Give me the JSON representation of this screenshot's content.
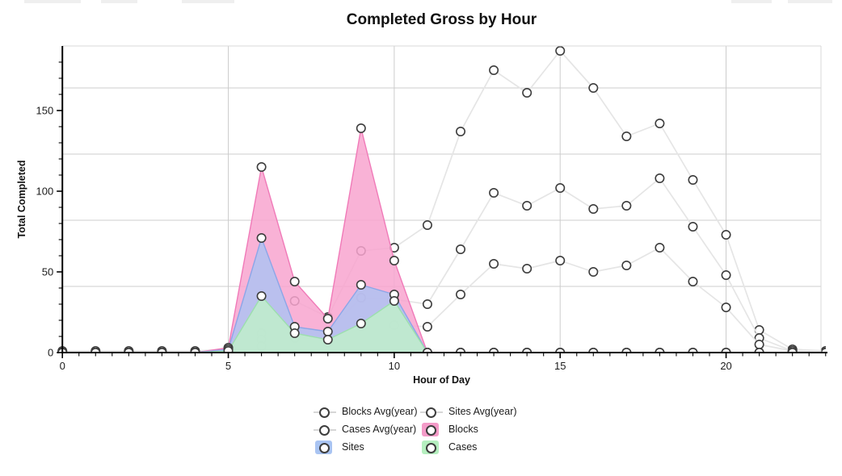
{
  "chart_data": {
    "type": "area",
    "title": "Completed Gross by Hour",
    "xlabel": "Hour of Day",
    "ylabel": "Total Completed",
    "x": [
      0,
      1,
      2,
      3,
      4,
      5,
      6,
      7,
      8,
      9,
      10,
      11,
      12,
      13,
      14,
      15,
      16,
      17,
      18,
      19,
      20,
      21,
      22,
      23
    ],
    "xlim": [
      0,
      23
    ],
    "ylim": [
      0,
      190
    ],
    "x_ticks": [
      0,
      5,
      10,
      15,
      20
    ],
    "y_ticks": [
      0,
      50,
      100,
      150
    ],
    "grid": {
      "h_values": [
        41,
        82,
        123,
        164
      ],
      "v_hours": [
        5,
        10,
        15,
        20
      ]
    },
    "marker": {
      "fill": "#ffffff",
      "ring": "#3d3d3d"
    },
    "series": [
      {
        "name": "Blocks Avg(year)",
        "type": "line",
        "color": "#e5e5e5",
        "values": [
          1,
          1,
          1,
          1,
          1,
          2,
          12,
          32,
          22,
          63,
          65,
          79,
          137,
          175,
          161,
          187,
          164,
          134,
          142,
          107,
          73,
          14,
          2,
          1
        ]
      },
      {
        "name": "Sites Avg(year)",
        "type": "line",
        "color": "#e5e5e5",
        "values": [
          0,
          0,
          0,
          0,
          0,
          1,
          8,
          16,
          13,
          34,
          33,
          30,
          64,
          99,
          91,
          102,
          89,
          91,
          108,
          78,
          48,
          9,
          1,
          0
        ]
      },
      {
        "name": "Cases Avg(year)",
        "type": "line",
        "color": "#e5e5e5",
        "values": [
          0,
          0,
          0,
          0,
          0,
          1,
          4,
          9,
          6,
          18,
          17,
          16,
          36,
          55,
          52,
          57,
          50,
          54,
          65,
          44,
          28,
          5,
          1,
          0
        ]
      },
      {
        "name": "Blocks",
        "type": "area",
        "fill": "#f8a5cf",
        "edge": "#f07ab8",
        "values": [
          0,
          0,
          0,
          0,
          0,
          3,
          115,
          44,
          21,
          139,
          57,
          0,
          0,
          0,
          0,
          0,
          0,
          0,
          0,
          0,
          0,
          0,
          0,
          0
        ]
      },
      {
        "name": "Sites",
        "type": "area",
        "fill": "#afc2f2",
        "edge": "#8ca6e8",
        "values": [
          0,
          0,
          0,
          0,
          0,
          2,
          71,
          16,
          13,
          42,
          36,
          0,
          0,
          0,
          0,
          0,
          0,
          0,
          0,
          0,
          0,
          0,
          0,
          0
        ]
      },
      {
        "name": "Cases",
        "type": "area",
        "fill": "#bfeeca",
        "edge": "#9cdfad",
        "values": [
          0,
          0,
          0,
          0,
          0,
          1,
          35,
          12,
          8,
          18,
          32,
          0,
          0,
          0,
          0,
          0,
          0,
          0,
          0,
          0,
          0,
          0,
          0,
          0
        ]
      }
    ],
    "legend": {
      "position": "bottom",
      "entries": [
        {
          "label": "Blocks Avg(year)",
          "kind": "line",
          "swatch": "#d6d6d6"
        },
        {
          "label": "Sites Avg(year)",
          "kind": "line",
          "swatch": "#d6d6d6"
        },
        {
          "label": "Cases Avg(year)",
          "kind": "line",
          "swatch": "#d6d6d6"
        },
        {
          "label": "Blocks",
          "kind": "area",
          "swatch": "#f49bc8"
        },
        {
          "label": "Sites",
          "kind": "area",
          "swatch": "#a9c4f2"
        },
        {
          "label": "Cases",
          "kind": "area",
          "swatch": "#b5efbf"
        }
      ]
    },
    "colors": {
      "grid": "#cccccc",
      "axis": "#000000",
      "frame": "#d8d8d8",
      "tick_text": "#1c1c1c"
    }
  }
}
